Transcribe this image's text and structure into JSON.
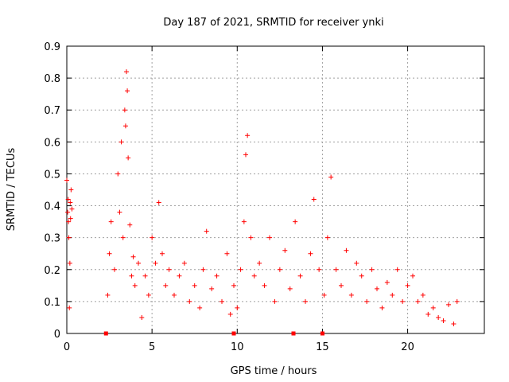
{
  "chart_data": {
    "type": "scatter",
    "title": "Day 187 of 2021, SRMTID for receiver ynki",
    "xlabel": "GPS time / hours",
    "ylabel": "SRMTID / TECUs",
    "xlim": [
      0,
      24.5
    ],
    "ylim": [
      0,
      0.9
    ],
    "xticks": [
      0,
      5,
      10,
      15,
      20
    ],
    "yticks": [
      0,
      0.1,
      0.2,
      0.3,
      0.4,
      0.5,
      0.6,
      0.7,
      0.8,
      0.9
    ],
    "grid": true,
    "marker": "+",
    "color": "#ff0000",
    "outage_markers_x": [
      2.3,
      9.8,
      13.3,
      15.0
    ],
    "series": [
      {
        "name": "SRMTID",
        "x": [
          0.0,
          0.05,
          0.08,
          0.1,
          0.12,
          0.15,
          0.18,
          0.2,
          0.22,
          0.25,
          0.3,
          2.4,
          2.5,
          2.6,
          2.8,
          3.0,
          3.1,
          3.2,
          3.3,
          3.4,
          3.45,
          3.5,
          3.55,
          3.6,
          3.7,
          3.8,
          3.9,
          4.0,
          4.2,
          4.4,
          4.6,
          4.8,
          5.0,
          5.2,
          5.4,
          5.6,
          5.8,
          6.0,
          6.3,
          6.6,
          6.9,
          7.2,
          7.5,
          7.8,
          8.0,
          8.2,
          8.5,
          8.8,
          9.1,
          9.4,
          9.6,
          9.8,
          10.0,
          10.2,
          10.4,
          10.5,
          10.6,
          10.8,
          11.0,
          11.3,
          11.6,
          11.9,
          12.2,
          12.5,
          12.8,
          13.1,
          13.4,
          13.7,
          14.0,
          14.3,
          14.5,
          14.8,
          15.1,
          15.3,
          15.5,
          15.8,
          16.1,
          16.4,
          16.7,
          17.0,
          17.3,
          17.6,
          17.9,
          18.2,
          18.5,
          18.8,
          19.1,
          19.4,
          19.7,
          20.0,
          20.3,
          20.6,
          20.9,
          21.2,
          21.5,
          21.8,
          22.1,
          22.4,
          22.7,
          22.9
        ],
        "y": [
          0.48,
          0.38,
          0.42,
          0.35,
          0.3,
          0.08,
          0.22,
          0.41,
          0.36,
          0.45,
          0.39,
          0.12,
          0.25,
          0.35,
          0.2,
          0.5,
          0.38,
          0.6,
          0.3,
          0.7,
          0.65,
          0.82,
          0.76,
          0.55,
          0.34,
          0.18,
          0.24,
          0.15,
          0.22,
          0.05,
          0.18,
          0.12,
          0.3,
          0.22,
          0.41,
          0.25,
          0.15,
          0.2,
          0.12,
          0.18,
          0.22,
          0.1,
          0.15,
          0.08,
          0.2,
          0.32,
          0.14,
          0.18,
          0.1,
          0.25,
          0.06,
          0.15,
          0.08,
          0.2,
          0.35,
          0.56,
          0.62,
          0.3,
          0.18,
          0.22,
          0.15,
          0.3,
          0.1,
          0.2,
          0.26,
          0.14,
          0.35,
          0.18,
          0.1,
          0.25,
          0.42,
          0.2,
          0.12,
          0.3,
          0.49,
          0.2,
          0.15,
          0.26,
          0.12,
          0.22,
          0.18,
          0.1,
          0.2,
          0.14,
          0.08,
          0.16,
          0.12,
          0.2,
          0.1,
          0.15,
          0.18,
          0.1,
          0.12,
          0.06,
          0.08,
          0.05,
          0.04,
          0.09,
          0.03,
          0.1
        ]
      }
    ]
  }
}
